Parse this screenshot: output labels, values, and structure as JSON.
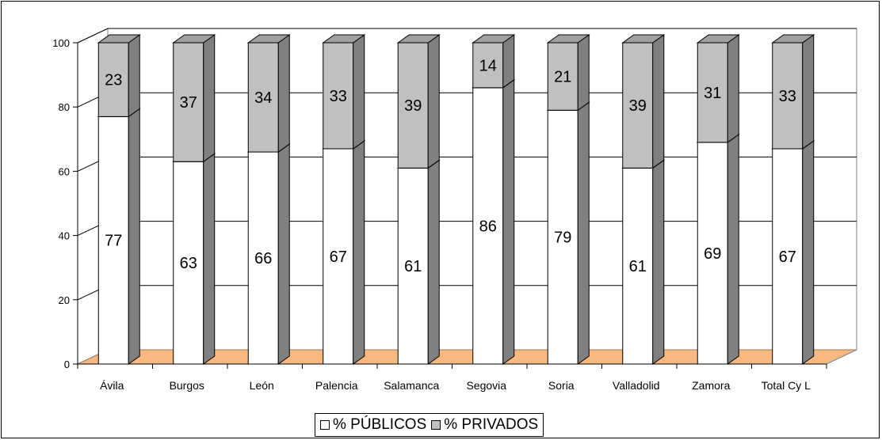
{
  "chart_data": {
    "type": "bar",
    "stacked": true,
    "three_d": true,
    "categories": [
      "Ávila",
      "Burgos",
      "León",
      "Palencia",
      "Salamanca",
      "Segovia",
      "Soria",
      "Valladolid",
      "Zamora",
      "Total Cy L"
    ],
    "series": [
      {
        "name": "% PÚBLICOS",
        "values": [
          77,
          63,
          66,
          67,
          61,
          86,
          79,
          61,
          69,
          67
        ],
        "color": "#ffffff"
      },
      {
        "name": "% PRIVADOS",
        "values": [
          23,
          37,
          34,
          33,
          39,
          14,
          21,
          39,
          31,
          33
        ],
        "color": "#c0c0c0"
      }
    ],
    "ylim": [
      0,
      100
    ],
    "yticks": [
      "0",
      "20",
      "40",
      "60",
      "80",
      "100"
    ],
    "grid": true,
    "legend_position": "bottom",
    "floor_color": "#f8b880",
    "side_color": "#808080"
  }
}
